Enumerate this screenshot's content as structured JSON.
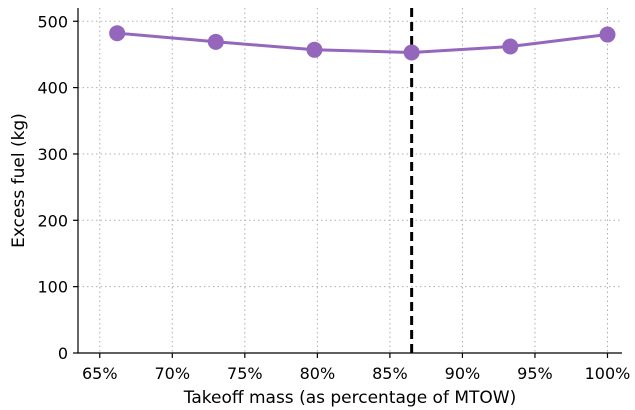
{
  "chart_data": {
    "type": "line",
    "title": "",
    "xlabel": "Takeoff mass (as percentage of MTOW)",
    "ylabel": "Excess fuel (kg)",
    "xlim": [
      63.5,
      101
    ],
    "ylim": [
      0,
      520
    ],
    "x_ticks": [
      65,
      70,
      75,
      80,
      85,
      90,
      95,
      100
    ],
    "x_tick_labels": [
      "65%",
      "70%",
      "75%",
      "80%",
      "85%",
      "90%",
      "95%",
      "100%"
    ],
    "y_ticks": [
      0,
      100,
      200,
      300,
      400,
      500
    ],
    "y_tick_labels": [
      "0",
      "100",
      "200",
      "300",
      "400",
      "500"
    ],
    "grid": true,
    "series": [
      {
        "color": "#9467bd",
        "marker": "circle",
        "x": [
          66.2,
          73.0,
          79.8,
          86.5,
          93.3,
          100.0
        ],
        "y": [
          482,
          469,
          457,
          453,
          462,
          480
        ]
      }
    ],
    "reference_line": {
      "orientation": "vertical",
      "x": 86.5,
      "style": "dashed",
      "color": "#000000"
    }
  }
}
